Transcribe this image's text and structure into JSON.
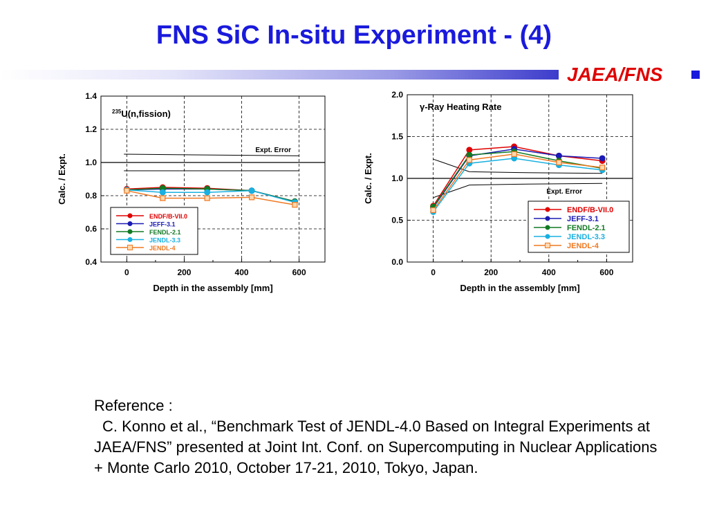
{
  "slide": {
    "title": "FNS SiC In-situ Experiment - (4)",
    "brand": "JAEA/FNS",
    "colors": {
      "title": "#1a1adc",
      "brand": "#e00000",
      "bar": "#3c3ccc"
    }
  },
  "reference": {
    "heading": "Reference :",
    "body": "C. Konno et al., “Benchmark Test of JENDL-4.0 Based on Integral Experiments at JAEA/FNS” presented at Joint Int. Conf. on Supercomputing in Nuclear Applications + Monte Carlo 2010, October 17-21, 2010, Tokyo, Japan."
  },
  "chart_data": [
    {
      "type": "line",
      "title_sup": "235",
      "title": "U(n,fission)",
      "xlabel": "Depth in the assembly [mm]",
      "ylabel": "Calc. / Expt.",
      "xlim": [
        -90,
        690
      ],
      "ylim": [
        0.4,
        1.4
      ],
      "xticks": [
        0,
        200,
        400,
        600
      ],
      "yticks": [
        0.4,
        0.6,
        0.8,
        1.0,
        1.2,
        1.4
      ],
      "ytick_labels": [
        "0.4",
        "0.6",
        "0.8",
        "1.0",
        "1.2",
        "1.4"
      ],
      "grid": true,
      "legend_position": "bottom-left",
      "x": [
        0,
        125,
        280,
        435,
        585
      ],
      "series": [
        {
          "name": "ENDF/B-VII.0",
          "color": "#e00000",
          "values": [
            0.84,
            0.85,
            0.845,
            0.83,
            0.765
          ]
        },
        {
          "name": "JEFF-3.1",
          "color": "#1a1ab4",
          "values": [
            0.835,
            0.84,
            0.84,
            0.83,
            0.765
          ]
        },
        {
          "name": "FENDL-2.1",
          "color": "#127a24",
          "values": [
            0.835,
            0.845,
            0.84,
            0.83,
            0.765
          ]
        },
        {
          "name": "JENDL-3.3",
          "color": "#18b0e0",
          "values": [
            0.835,
            0.82,
            0.82,
            0.83,
            0.76
          ]
        },
        {
          "name": "JENDL-4",
          "color": "#f07820",
          "values": [
            0.83,
            0.785,
            0.785,
            0.79,
            0.745
          ]
        }
      ],
      "error_band": {
        "label": "Expt. Error",
        "upper": [
          1.05,
          1.04
        ],
        "lower": [
          0.95,
          0.95
        ],
        "x": [
          -10,
          600
        ]
      }
    },
    {
      "type": "line",
      "title": "γ-Ray Heating Rate",
      "xlabel": "Depth in the assembly [mm]",
      "ylabel": "Calc. / Expt.",
      "xlim": [
        -90,
        690
      ],
      "ylim": [
        0.0,
        2.0
      ],
      "xticks": [
        0,
        200,
        400,
        600
      ],
      "yticks": [
        0.0,
        0.5,
        1.0,
        1.5,
        2.0
      ],
      "ytick_labels": [
        "0.0",
        "0.5",
        "1.0",
        "1.5",
        "2.0"
      ],
      "grid": true,
      "legend_position": "bottom-right",
      "x": [
        0,
        125,
        280,
        435,
        585
      ],
      "series": [
        {
          "name": "ENDF/B-VII.0",
          "color": "#e00000",
          "values": [
            0.67,
            1.34,
            1.38,
            1.27,
            1.21
          ]
        },
        {
          "name": "JEFF-3.1",
          "color": "#1a1ab4",
          "values": [
            0.65,
            1.27,
            1.35,
            1.27,
            1.24
          ]
        },
        {
          "name": "FENDL-2.1",
          "color": "#127a24",
          "values": [
            0.66,
            1.28,
            1.32,
            1.21,
            1.12
          ]
        },
        {
          "name": "JENDL-3.3",
          "color": "#18b0e0",
          "values": [
            0.6,
            1.18,
            1.24,
            1.16,
            1.1
          ]
        },
        {
          "name": "JENDL-4",
          "color": "#f07820",
          "values": [
            0.62,
            1.22,
            1.29,
            1.19,
            1.13
          ]
        }
      ],
      "error_band": {
        "label": "Expt. Error",
        "upper": [
          1.23,
          1.08,
          1.07,
          1.06
        ],
        "lower": [
          0.77,
          0.92,
          0.93,
          0.94
        ],
        "x": [
          0,
          125,
          280,
          585
        ]
      }
    }
  ]
}
